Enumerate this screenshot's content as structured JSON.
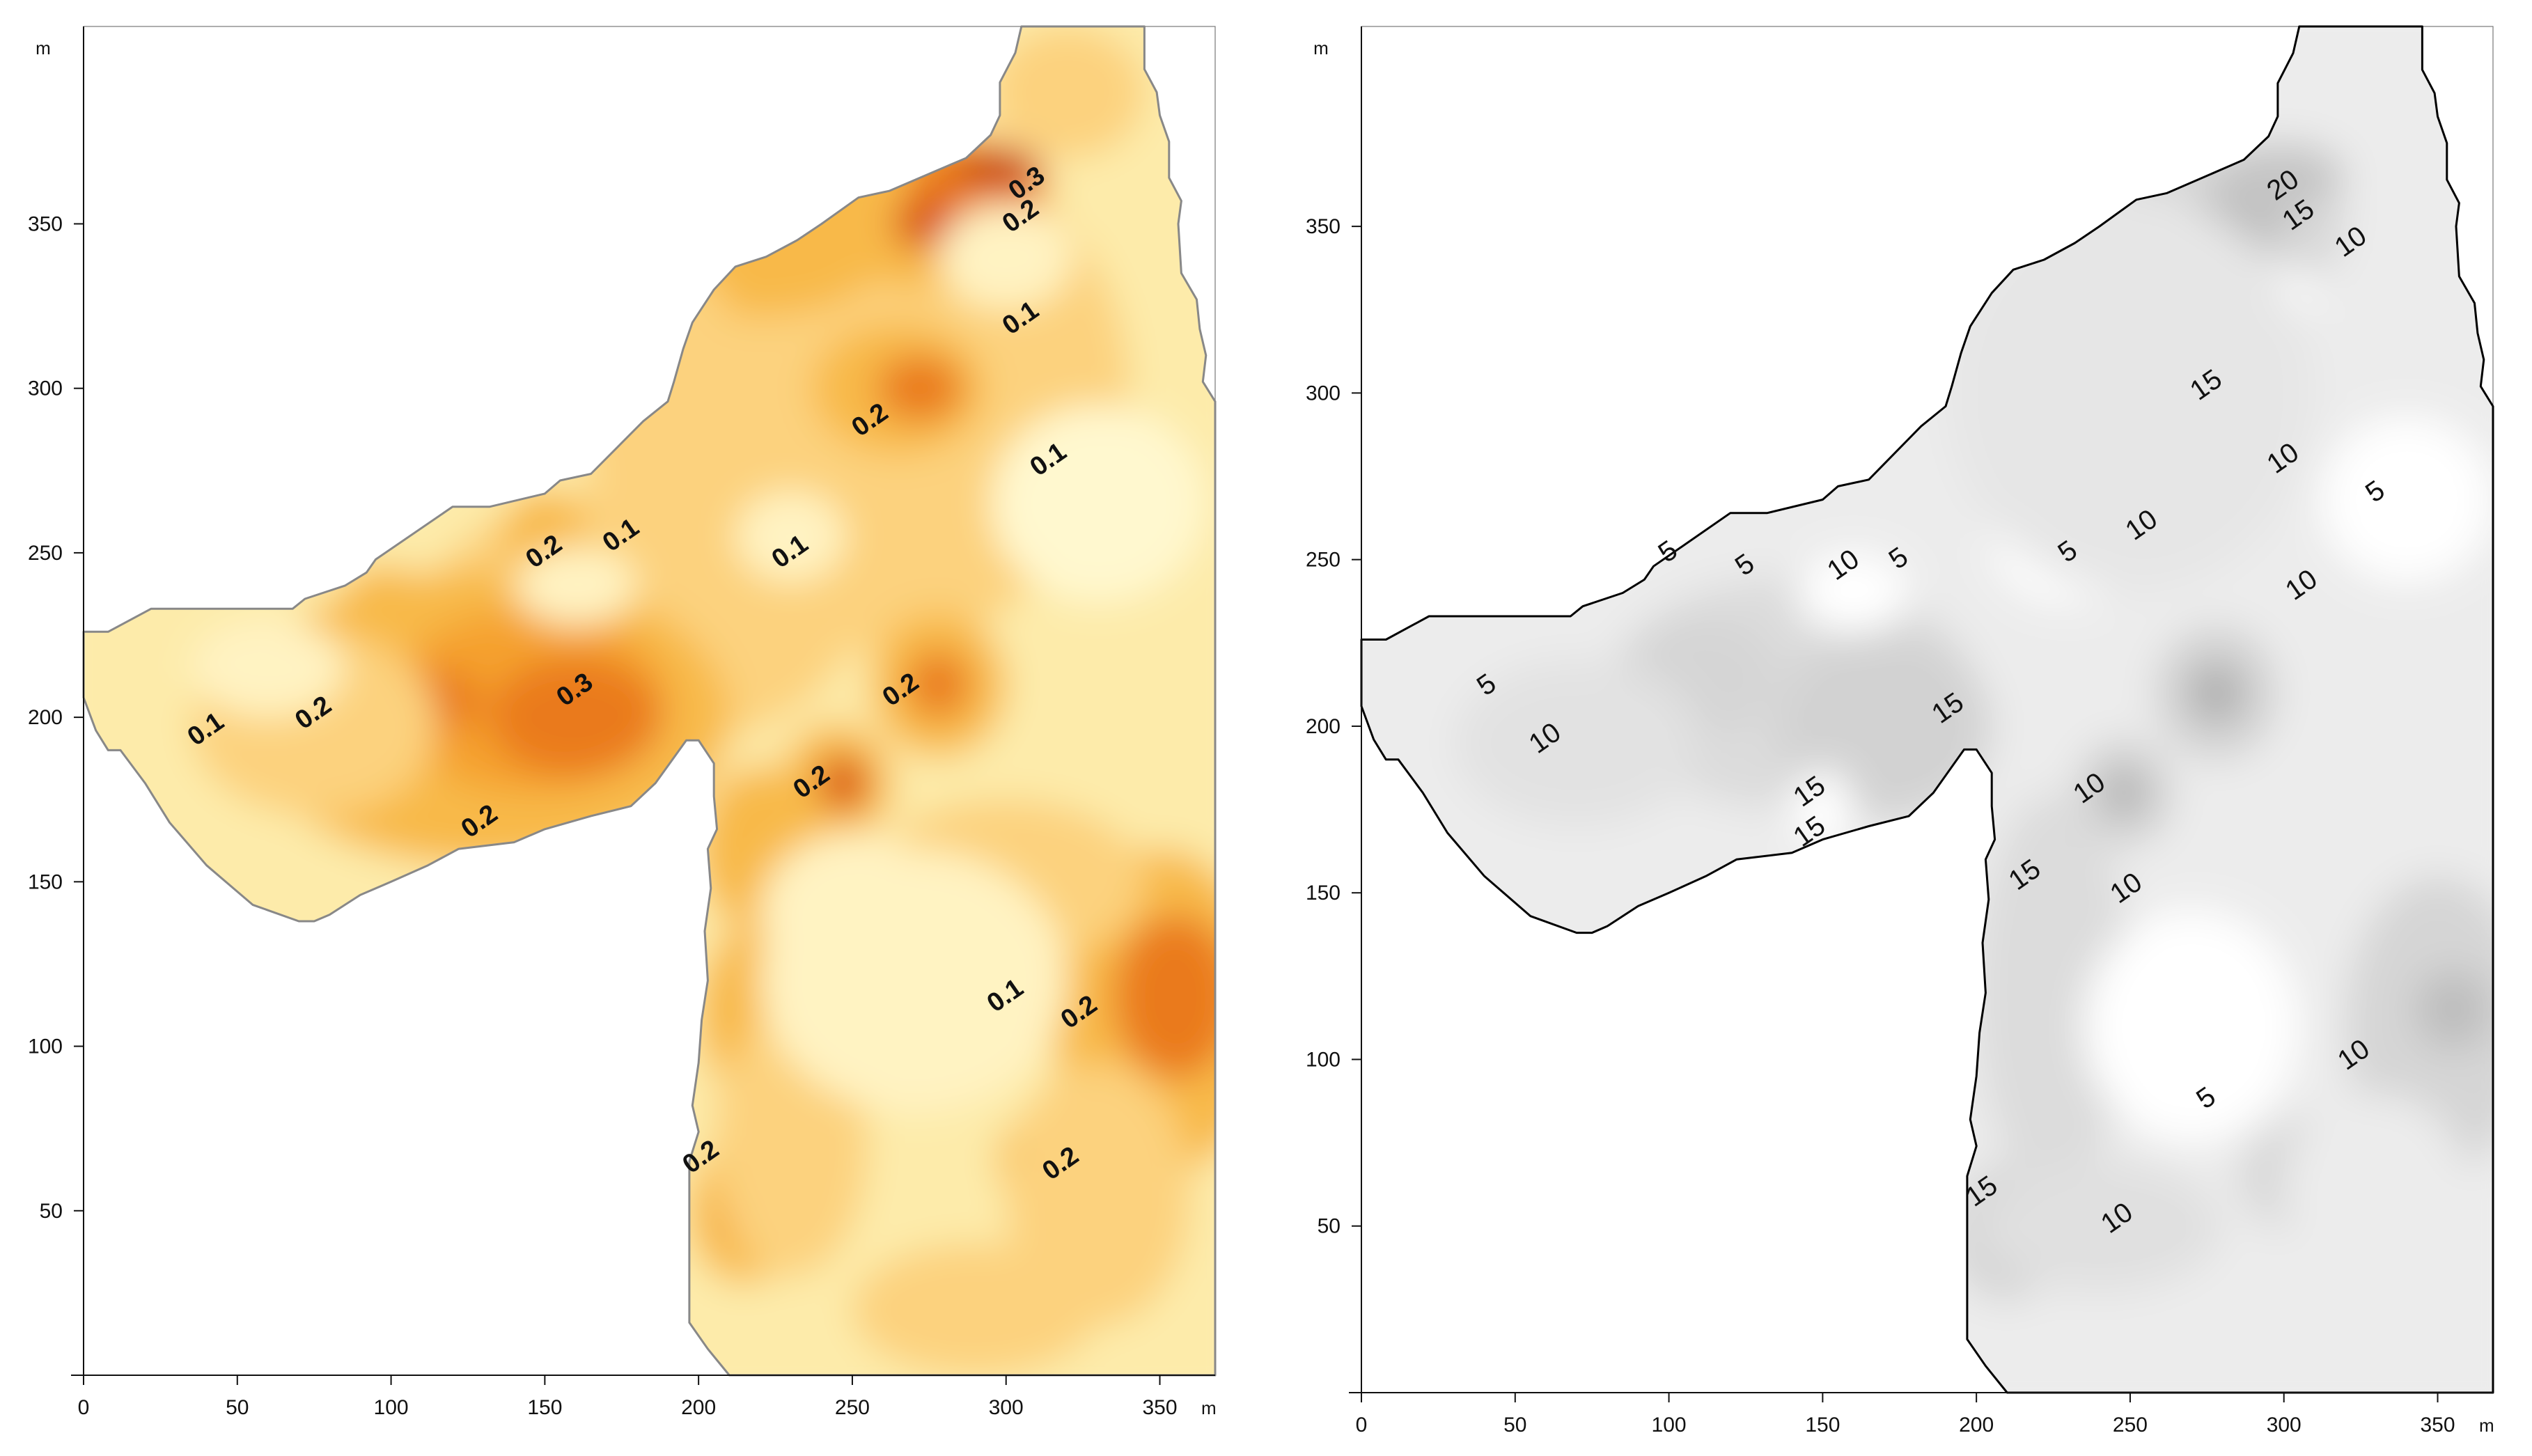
{
  "chart_data": [
    {
      "type": "heatmap",
      "title": "",
      "xlabel": "m",
      "ylabel": "m",
      "xlim": [
        0,
        368
      ],
      "ylim": [
        0,
        410
      ],
      "x_ticks": [
        "0",
        "50",
        "100",
        "150",
        "200",
        "250",
        "300",
        "350"
      ],
      "y_ticks": [
        "50",
        "100",
        "150",
        "200",
        "250",
        "300",
        "350"
      ],
      "colors": {
        "low": "#fff8cf",
        "mid": "#fcd27e",
        "high": "#f5a12e",
        "peak": "#d9510c",
        "outline": "#888888"
      },
      "contour_labels": [
        {
          "text": "0.3",
          "x": 307,
          "y": 362
        },
        {
          "text": "0.2",
          "x": 305,
          "y": 352
        },
        {
          "text": "0.1",
          "x": 305,
          "y": 321
        },
        {
          "text": "0.2",
          "x": 256,
          "y": 290
        },
        {
          "text": "0.1",
          "x": 314,
          "y": 278
        },
        {
          "text": "0.1",
          "x": 175,
          "y": 255
        },
        {
          "text": "0.2",
          "x": 150,
          "y": 250
        },
        {
          "text": "0.1",
          "x": 230,
          "y": 250
        },
        {
          "text": "0.3",
          "x": 160,
          "y": 208
        },
        {
          "text": "0.2",
          "x": 266,
          "y": 208
        },
        {
          "text": "0.1",
          "x": 40,
          "y": 196
        },
        {
          "text": "0.2",
          "x": 75,
          "y": 201
        },
        {
          "text": "0.2",
          "x": 237,
          "y": 180
        },
        {
          "text": "0.2",
          "x": 129,
          "y": 168
        },
        {
          "text": "0.1",
          "x": 300,
          "y": 115
        },
        {
          "text": "0.2",
          "x": 324,
          "y": 110
        },
        {
          "text": "0.2",
          "x": 201,
          "y": 66
        },
        {
          "text": "0.2",
          "x": 318,
          "y": 64
        }
      ]
    },
    {
      "type": "heatmap",
      "title": "",
      "xlabel": "m",
      "ylabel": "m",
      "xlim": [
        0,
        368
      ],
      "ylim": [
        0,
        410
      ],
      "x_ticks": [
        "0",
        "50",
        "100",
        "150",
        "200",
        "250",
        "300",
        "350"
      ],
      "y_ticks": [
        "50",
        "100",
        "150",
        "200",
        "250",
        "300",
        "350"
      ],
      "colors": {
        "low": "#ffffff",
        "mid": "#ececec",
        "high": "#d8d8d8",
        "peak": "#a9a9a9",
        "outline": "#000000"
      },
      "contour_labels": [
        {
          "text": "20",
          "x": 300,
          "y": 362
        },
        {
          "text": "15",
          "x": 305,
          "y": 353
        },
        {
          "text": "10",
          "x": 322,
          "y": 345
        },
        {
          "text": "15",
          "x": 275,
          "y": 302
        },
        {
          "text": "10",
          "x": 300,
          "y": 280
        },
        {
          "text": "5",
          "x": 330,
          "y": 270
        },
        {
          "text": "5",
          "x": 100,
          "y": 252
        },
        {
          "text": "5",
          "x": 125,
          "y": 248
        },
        {
          "text": "10",
          "x": 157,
          "y": 248
        },
        {
          "text": "5",
          "x": 175,
          "y": 250
        },
        {
          "text": "5",
          "x": 230,
          "y": 252
        },
        {
          "text": "10",
          "x": 254,
          "y": 260
        },
        {
          "text": "10",
          "x": 306,
          "y": 242
        },
        {
          "text": "5",
          "x": 41,
          "y": 212
        },
        {
          "text": "10",
          "x": 60,
          "y": 196
        },
        {
          "text": "15",
          "x": 191,
          "y": 205
        },
        {
          "text": "15",
          "x": 146,
          "y": 180
        },
        {
          "text": "15",
          "x": 146,
          "y": 168
        },
        {
          "text": "10",
          "x": 237,
          "y": 181
        },
        {
          "text": "15",
          "x": 216,
          "y": 155
        },
        {
          "text": "10",
          "x": 249,
          "y": 151
        },
        {
          "text": "10",
          "x": 323,
          "y": 101
        },
        {
          "text": "5",
          "x": 275,
          "y": 88
        },
        {
          "text": "15",
          "x": 202,
          "y": 60
        },
        {
          "text": "10",
          "x": 246,
          "y": 52
        }
      ]
    }
  ]
}
